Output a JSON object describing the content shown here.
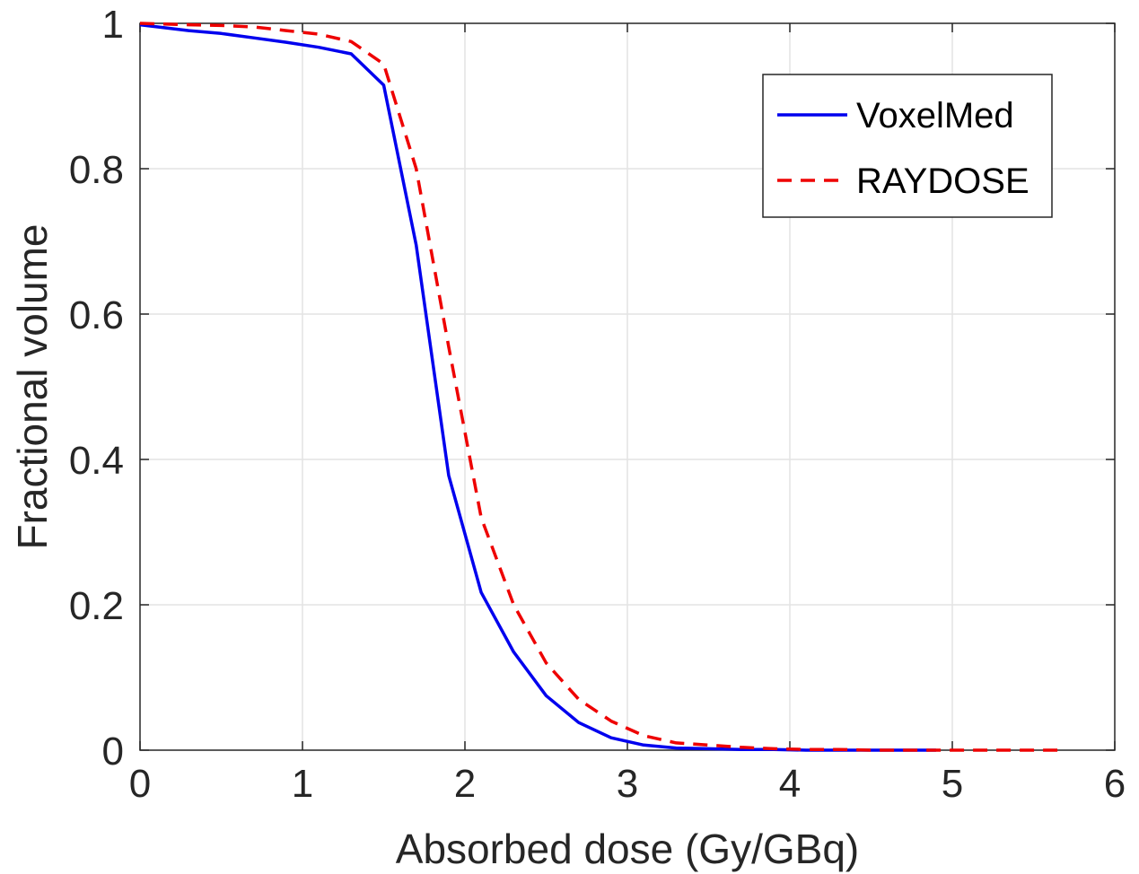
{
  "chart_data": {
    "type": "line",
    "title": "",
    "xlabel": "Absorbed dose (Gy/GBq)",
    "ylabel": "Fractional volume",
    "xlim": [
      0,
      6
    ],
    "ylim": [
      0,
      1
    ],
    "xticks": [
      0,
      1,
      2,
      3,
      4,
      5,
      6
    ],
    "yticks": [
      0,
      0.2,
      0.4,
      0.6,
      0.8,
      1
    ],
    "xtick_labels": [
      "0",
      "1",
      "2",
      "3",
      "4",
      "5",
      "6"
    ],
    "ytick_labels": [
      "0",
      "0.2",
      "0.4",
      "0.6",
      "0.8",
      "1"
    ],
    "grid": true,
    "legend": {
      "placement": "top-right"
    },
    "series": [
      {
        "name": "VoxelMed",
        "color": "#0000ee",
        "style": "solid",
        "x": [
          0,
          0.3,
          0.5,
          0.7,
          0.9,
          1.1,
          1.3,
          1.5,
          1.7,
          1.9,
          2.1,
          2.3,
          2.5,
          2.7,
          2.9,
          3.1,
          3.3,
          3.5,
          3.7,
          3.9,
          4.1,
          4.3,
          4.5,
          4.7,
          4.9
        ],
        "y": [
          0.998,
          0.99,
          0.986,
          0.98,
          0.974,
          0.967,
          0.958,
          0.915,
          0.695,
          0.378,
          0.217,
          0.135,
          0.075,
          0.038,
          0.017,
          0.007,
          0.003,
          0.002,
          0.001,
          0.001,
          0.0,
          0.0,
          0.0,
          0.0,
          0.0
        ]
      },
      {
        "name": "RAYDOSE",
        "color": "#ee0000",
        "style": "dashed",
        "x": [
          0,
          0.3,
          0.5,
          0.7,
          0.9,
          1.1,
          1.3,
          1.5,
          1.7,
          1.9,
          2.1,
          2.3,
          2.5,
          2.7,
          2.9,
          3.1,
          3.3,
          3.5,
          3.7,
          3.9,
          4.1,
          4.3,
          4.5,
          4.7,
          4.9,
          5.1,
          5.3,
          5.5,
          5.7
        ],
        "y": [
          1.0,
          0.998,
          0.997,
          0.995,
          0.99,
          0.985,
          0.975,
          0.944,
          0.8,
          0.555,
          0.32,
          0.2,
          0.12,
          0.07,
          0.04,
          0.02,
          0.01,
          0.007,
          0.004,
          0.002,
          0.001,
          0.001,
          0.0,
          0.0,
          0.0,
          0.0,
          0.0,
          0.0,
          0.0
        ]
      }
    ]
  }
}
